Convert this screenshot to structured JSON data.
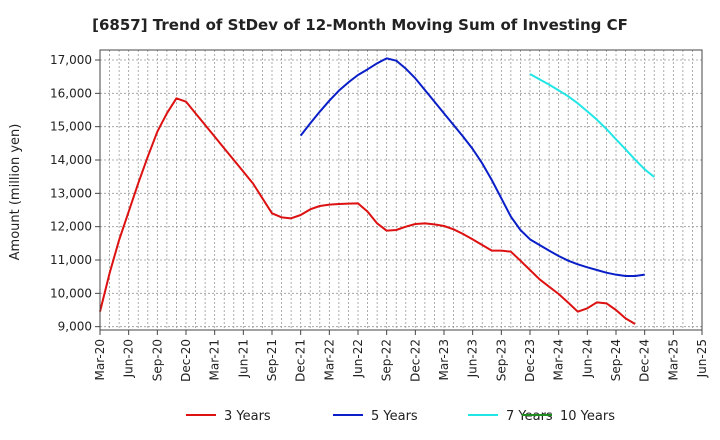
{
  "chart_data": {
    "type": "line",
    "title": "[6857]  Trend of StDev of 12-Month Moving Sum of Investing CF",
    "xlabel": "",
    "ylabel": "Amount (million yen)",
    "ylim": [
      8900,
      17300
    ],
    "yticks": [
      9000,
      10000,
      11000,
      12000,
      13000,
      14000,
      15000,
      16000,
      17000
    ],
    "ytick_labels": [
      "9,000",
      "10,000",
      "11,000",
      "12,000",
      "13,000",
      "14,000",
      "15,000",
      "16,000",
      "17,000"
    ],
    "xticks": [
      "Mar-20",
      "Jun-20",
      "Sep-20",
      "Dec-20",
      "Mar-21",
      "Jun-21",
      "Sep-21",
      "Dec-21",
      "Mar-22",
      "Jun-22",
      "Sep-22",
      "Dec-22",
      "Mar-23",
      "Jun-23",
      "Sep-23",
      "Dec-23",
      "Mar-24",
      "Jun-24",
      "Sep-24",
      "Dec-24",
      "Mar-25",
      "Jun-25"
    ],
    "grid": true,
    "legend_position": "bottom",
    "series": [
      {
        "name": "3 Years",
        "color": "#dd1111",
        "start": "Mar-20",
        "values": [
          9450,
          10600,
          11600,
          12450,
          13300,
          14100,
          14850,
          15400,
          15850,
          15750,
          15400,
          15050,
          14700,
          14350,
          14000,
          13650,
          13300,
          12850,
          12400,
          12280,
          12250,
          12350,
          12520,
          12620,
          12660,
          12680,
          12690,
          12700,
          12450,
          12100,
          11880,
          11900,
          12000,
          12080,
          12100,
          12070,
          12020,
          11920,
          11780,
          11620,
          11450,
          11280,
          11280,
          11250,
          10980,
          10700,
          10420,
          10200,
          9980,
          9720,
          9450,
          9550,
          9730,
          9700,
          9500,
          9250,
          9080
        ]
      },
      {
        "name": "5 Years",
        "color": "#0a1fc8",
        "start": "Dec-21",
        "values": [
          14730,
          15100,
          15450,
          15780,
          16080,
          16330,
          16550,
          16720,
          16900,
          17050,
          16980,
          16740,
          16450,
          16100,
          15750,
          15400,
          15050,
          14700,
          14330,
          13900,
          13400,
          12850,
          12300,
          11900,
          11620,
          11450,
          11280,
          11120,
          10980,
          10870,
          10780,
          10700,
          10620,
          10560,
          10520,
          10520,
          10560
        ]
      },
      {
        "name": "7 Years",
        "color": "#22e6e6",
        "start": "Dec-23",
        "values": [
          16580,
          16420,
          16260,
          16090,
          15910,
          15700,
          15460,
          15210,
          14930,
          14620,
          14320,
          14010,
          13720,
          13490
        ]
      },
      {
        "name": "10 Years",
        "color": "#1e8c1e",
        "start": "Mar-20",
        "values": []
      }
    ]
  }
}
